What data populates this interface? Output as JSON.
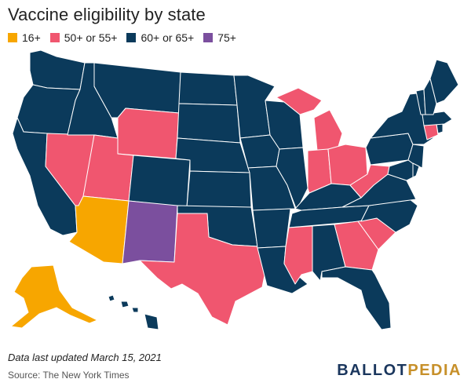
{
  "title": "Vaccine eligibility by state",
  "colors": {
    "c16": "#f7a600",
    "c50": "#f0566f",
    "c60": "#0b3a5b",
    "c75": "#7b4f9e"
  },
  "legend": [
    {
      "label": "16+",
      "color": "#f7a600"
    },
    {
      "label": "50+ or 55+",
      "color": "#f0566f"
    },
    {
      "label": "60+ or 65+",
      "color": "#0b3a5b"
    },
    {
      "label": "75+",
      "color": "#7b4f9e"
    }
  ],
  "categories": {
    "16+": [
      "AZ",
      "AK"
    ],
    "50+ or 55+": [
      "NV",
      "UT",
      "WY",
      "TX",
      "MS",
      "GA",
      "SC",
      "IN",
      "OH",
      "WV",
      "MI",
      "CT"
    ],
    "60+ or 65+": [
      "WA",
      "OR",
      "CA",
      "ID",
      "MT",
      "CO",
      "ND",
      "SD",
      "NE",
      "KS",
      "OK",
      "MN",
      "IA",
      "MO",
      "AR",
      "LA",
      "WI",
      "IL",
      "KY",
      "TN",
      "AL",
      "FL",
      "NC",
      "VA",
      "MD",
      "DE",
      "NJ",
      "PA",
      "NY",
      "VT",
      "NH",
      "ME",
      "MA",
      "RI",
      "HI"
    ],
    "75+": [
      "NM"
    ]
  },
  "footer": {
    "updated": "Data last updated March 15, 2021",
    "source": "Source: The New York Times"
  },
  "logo": {
    "part1": "BALLOT",
    "part2": "PEDIA"
  }
}
